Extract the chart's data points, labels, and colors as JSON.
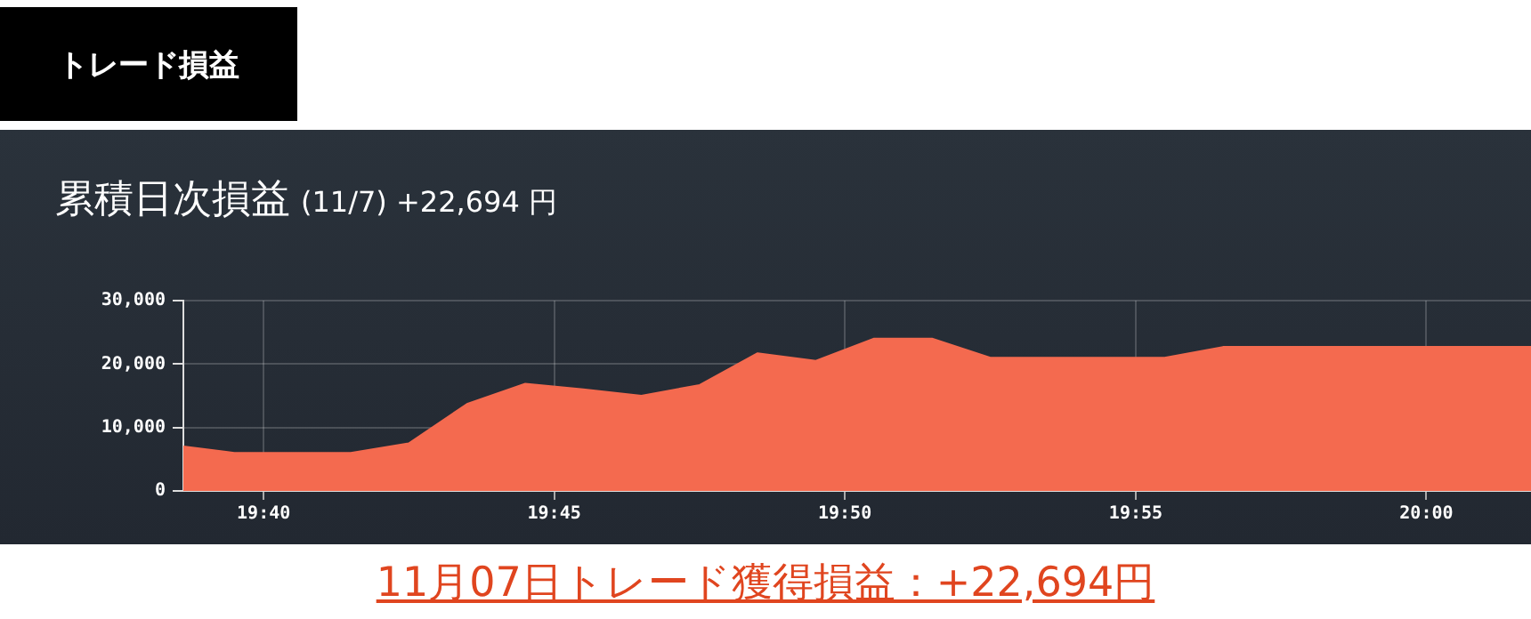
{
  "chart_data": {
    "type": "area",
    "title": "累積日次損益",
    "subtitle": "(11/7) +22,694 円",
    "annotations": [
      "トレード損益",
      "11月07日トレード獲得損益：+22,694円"
    ],
    "x": [
      19.6437,
      19.6583,
      19.6917,
      19.7083,
      19.725,
      19.7417,
      19.7583,
      19.775,
      19.7917,
      19.8083,
      19.825,
      19.8417,
      19.8583,
      19.875,
      19.925,
      19.9417,
      20.03
    ],
    "series": [
      {
        "color": "#f46a4f",
        "values": [
          7000,
          6000,
          6000,
          7500,
          13700,
          16900,
          16000,
          15000,
          16700,
          21700,
          20500,
          24000,
          24000,
          21000,
          21000,
          22694,
          22694
        ]
      }
    ],
    "xlim": [
      19.6437,
      20.03
    ],
    "xticks": [
      {
        "value": 19.6667,
        "label": "19:40"
      },
      {
        "value": 19.75,
        "label": "19:45"
      },
      {
        "value": 19.8333,
        "label": "19:50"
      },
      {
        "value": 19.9167,
        "label": "19:55"
      },
      {
        "value": 20,
        "label": "20:00"
      }
    ],
    "ylim": [
      0,
      30000
    ],
    "yticks": [
      {
        "value": 0,
        "label": "0"
      },
      {
        "value": 10000,
        "label": "10,000"
      },
      {
        "value": 20000,
        "label": "20,000"
      },
      {
        "value": 30000,
        "label": "30,000"
      }
    ],
    "grid": true,
    "legend": false
  }
}
